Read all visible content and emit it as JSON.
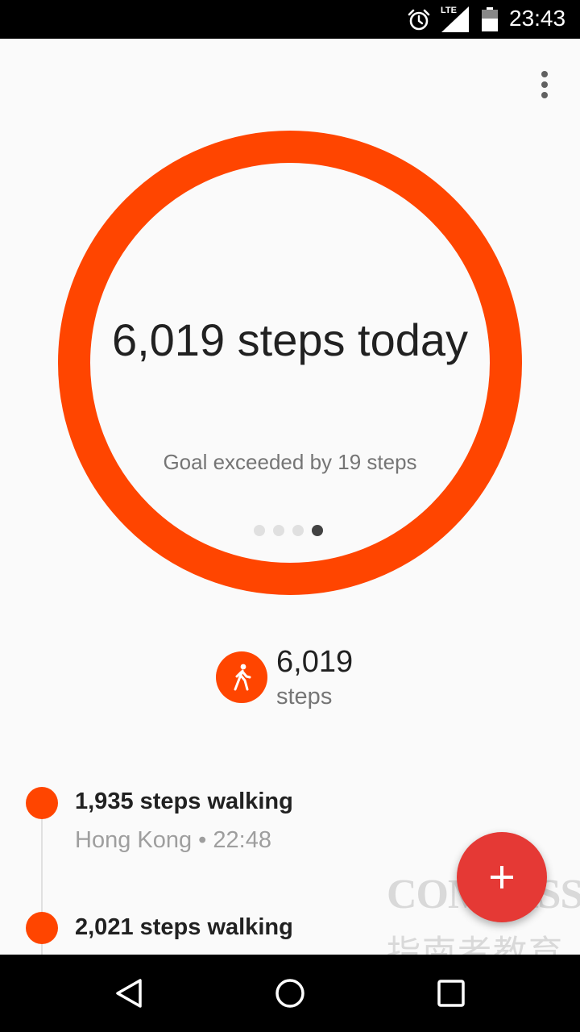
{
  "status_bar": {
    "network_label": "LTE",
    "time": "23:43",
    "icons": [
      "alarm-icon",
      "signal-icon",
      "battery-icon"
    ]
  },
  "toolbar": {
    "menu_icon": "more-vert-icon"
  },
  "ring": {
    "headline": "6,019 steps today",
    "goal_text": "Goal exceeded by 19 steps",
    "page_count": 4,
    "active_page": 4,
    "progress_fraction": 1.0,
    "color": "#ff4500"
  },
  "summary": {
    "icon": "walking-icon",
    "value": "6,019",
    "unit": "steps"
  },
  "timeline": [
    {
      "title": "1,935 steps walking",
      "subtitle": "Hong Kong • 22:48"
    },
    {
      "title": "2,021 steps walking",
      "subtitle": ""
    }
  ],
  "fab": {
    "icon": "add-icon"
  },
  "watermark": {
    "brand": "COMPASS",
    "chinese": "指南者教育"
  },
  "nav_bar": {
    "buttons": [
      "back-icon",
      "home-icon",
      "recents-icon"
    ]
  },
  "colors": {
    "accent": "#ff4500",
    "fab": "#e53935",
    "text_primary": "#212121",
    "text_secondary": "#757575"
  }
}
